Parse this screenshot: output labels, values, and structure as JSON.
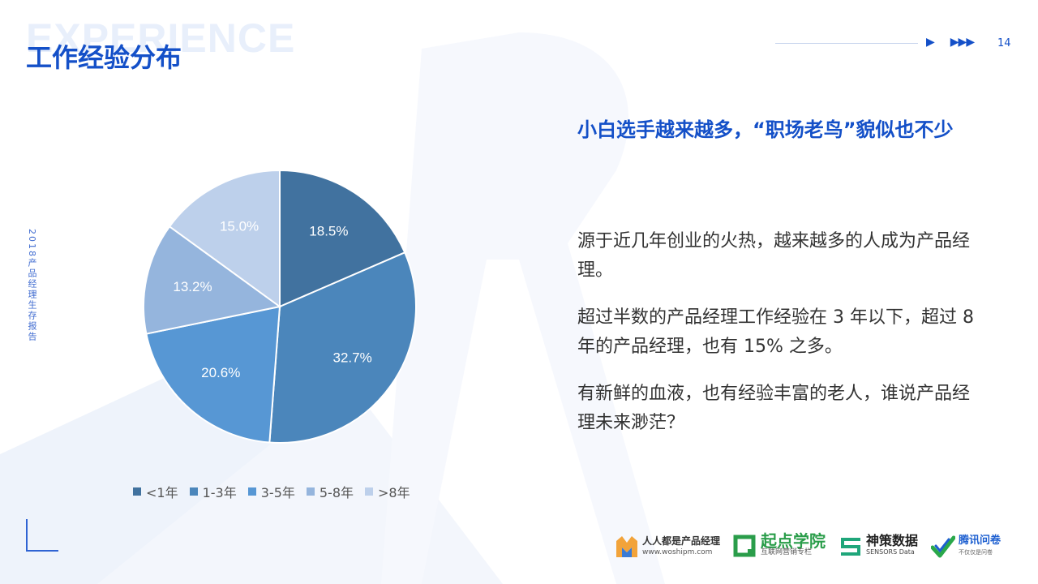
{
  "page": {
    "watermark": "EXPERIENCE",
    "title": "工作经验分布",
    "page_number": "14",
    "side_label": "2018产品经理生存报告"
  },
  "colors": {
    "accent": "#1450c8",
    "slices": [
      "#41729f",
      "#4b86bb",
      "#5797d4",
      "#95b5dd",
      "#bdd0eb"
    ]
  },
  "chart_data": {
    "type": "pie",
    "title": "",
    "categories": [
      "<1年",
      "1-3年",
      "3-5年",
      "5-8年",
      ">8年"
    ],
    "values": [
      18.5,
      32.7,
      20.6,
      13.2,
      15.0
    ],
    "labels": [
      "18.5%",
      "32.7%",
      "20.6%",
      "13.2%",
      "15.0%"
    ],
    "legend": "bottom",
    "start": "12 o'clock",
    "direction": "clockwise"
  },
  "content": {
    "headline": "小白选手越来越多，“职场老鸟”貌似也不少",
    "para1": "源于近几年创业的火热，越来越多的人成为产品经理。",
    "para2": "超过半数的产品经理工作经验在 3 年以下，超过 8 年的产品经理，也有 15% 之多。",
    "para3": "有新鲜的血液，也有经验丰富的老人，谁说产品经理未来渺茫？"
  },
  "logos": {
    "woshipm_name": "人人都是产品经理",
    "woshipm_url": "www.woshipm.com",
    "qidian_name": "起点学院",
    "qidian_tagline": "互联网营销专栏",
    "sensors_name": "神策数据",
    "sensors_sub": "SENSORS Data",
    "tencent_name": "腾讯问卷",
    "tencent_tagline": "不仅仅是问卷"
  }
}
